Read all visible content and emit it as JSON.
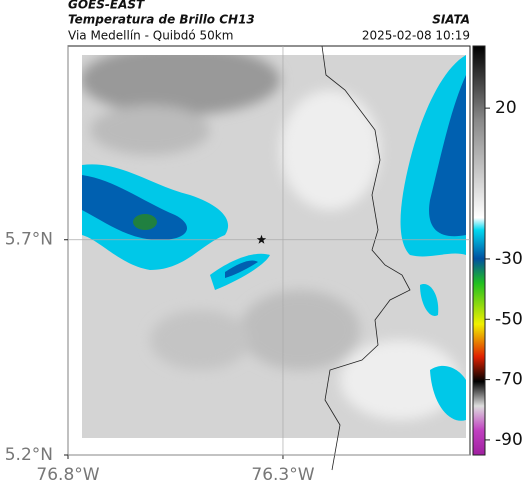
{
  "header": {
    "satellite": "GOES-EAST",
    "product": "Temperatura de Brillo CH13",
    "region": "Via Medellín - Quibdó 50km",
    "source": "SIATA",
    "datetime": "2025-02-08 10:19"
  },
  "map": {
    "xlim": [
      -76.8,
      -75.865
    ],
    "ylim": [
      5.2,
      6.15
    ],
    "xticks": [
      {
        "value": -76.8,
        "label": "76.8°W"
      },
      {
        "value": -76.3,
        "label": "76.3°W"
      }
    ],
    "yticks": [
      {
        "value": 5.7,
        "label": "5.7°N"
      },
      {
        "value": 5.2,
        "label": "5.2°N"
      }
    ],
    "grid": true,
    "station": {
      "lon": -76.35,
      "lat": 5.7
    },
    "colorbar": {
      "lim": [
        40.6,
        -95
      ],
      "ticks": [
        20,
        -30,
        -50,
        -70,
        -90
      ]
    }
  }
}
